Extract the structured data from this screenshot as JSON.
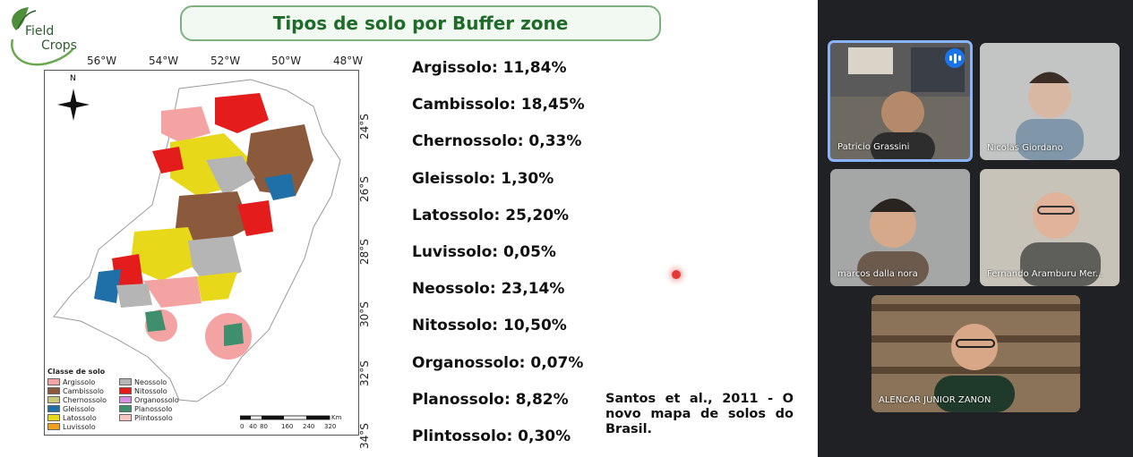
{
  "slide": {
    "logo_line1": "Field",
    "logo_line2": "Crops",
    "title": "Tipos de solo por Buffer zone",
    "map": {
      "longitudes": [
        "56°W",
        "54°W",
        "52°W",
        "50°W",
        "48°W"
      ],
      "latitudes": [
        "24°S",
        "26°S",
        "28°S",
        "30°S",
        "32°S",
        "34°S"
      ],
      "north": "N",
      "legend_title": "Classe de solo",
      "legend_left": [
        {
          "label": "Argissolo",
          "color": "#f4a3a3"
        },
        {
          "label": "Cambissolo",
          "color": "#8b5a3c"
        },
        {
          "label": "Chernossolo",
          "color": "#c8c77a"
        },
        {
          "label": "Gleissolo",
          "color": "#1f6fa8"
        },
        {
          "label": "Latossolo",
          "color": "#e8d81a"
        },
        {
          "label": "Luvissolo",
          "color": "#f0a020"
        }
      ],
      "legend_right": [
        {
          "label": "Neossolo",
          "color": "#b5b5b5"
        },
        {
          "label": "Nitossolo",
          "color": "#e51c1c"
        },
        {
          "label": "Organossolo",
          "color": "#d48fe0"
        },
        {
          "label": "Planossolo",
          "color": "#3f8f6f"
        },
        {
          "label": "Plintossolo",
          "color": "#f6c6c0"
        }
      ],
      "scale_unit": "Km",
      "scale_ticks": [
        "0",
        "40",
        "80",
        "160",
        "240",
        "320"
      ]
    },
    "stats": [
      "Argissolo: 11,84%",
      "Cambissolo: 18,45%",
      "Chernossolo: 0,33%",
      "Gleissolo: 1,30%",
      "Latossolo: 25,20%",
      "Luvissolo: 0,05%",
      "Neossolo: 23,14%",
      "Nitossolo: 10,50%",
      "Organossolo: 0,07%",
      "Planossolo: 8,82%",
      "Plintossolo: 0,30%"
    ],
    "citation": "Santos et al., 2011 - O novo mapa de solos do Brasil."
  },
  "participants": [
    {
      "name": "Patricio Grassini",
      "speaking": true,
      "bg": "#6e6a62"
    },
    {
      "name": "Nicolas Giordano",
      "speaking": false,
      "bg": "#9aa0a6"
    },
    {
      "name": "marcos dalla nora",
      "speaking": false,
      "bg": "#8a8a86"
    },
    {
      "name": "Fernando Aramburu Mer...",
      "speaking": false,
      "bg": "#a9a59b"
    },
    {
      "name": "ALENCAR JUNIOR ZANON",
      "speaking": false,
      "bg": "#7a6a55"
    }
  ]
}
